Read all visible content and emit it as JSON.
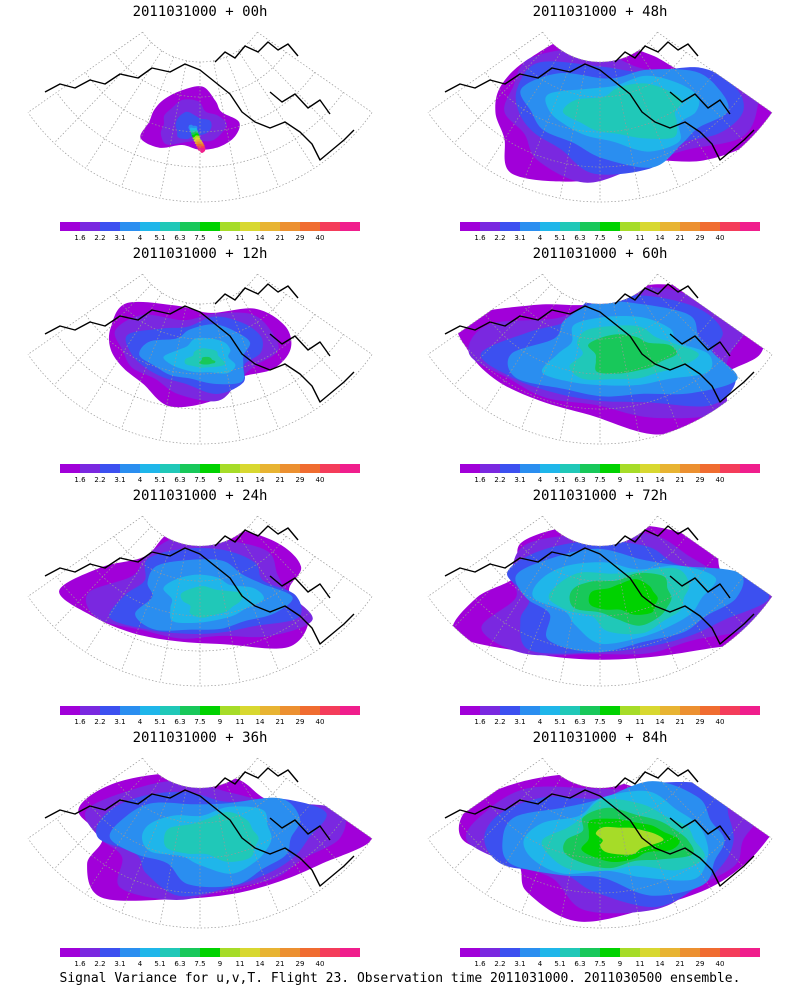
{
  "chart_data": {
    "type": "heatmap",
    "caption": "Signal Variance for u,v,T. Flight 23. Observation time 2011031000. 2011030500 ensemble.",
    "colorbar": {
      "ticks": [
        "1.6",
        "2.2",
        "3.1",
        "4",
        "5.1",
        "6.3",
        "7.5",
        "9",
        "11",
        "14",
        "21",
        "29",
        "40"
      ],
      "colors": [
        "#a100d9",
        "#7a28e0",
        "#3c50f0",
        "#2a8ef0",
        "#1fb6ea",
        "#20c8b8",
        "#18c85a",
        "#00d200",
        "#a6dc28",
        "#d8d830",
        "#e8b432",
        "#ec9030",
        "#f06c30",
        "#f43c5a",
        "#f01e8c"
      ]
    },
    "panels": [
      {
        "title": "2011031000 + 00h",
        "max_level": 14
      },
      {
        "title": "2011031000 + 48h",
        "max_level": 5
      },
      {
        "title": "2011031000 + 12h",
        "max_level": 6
      },
      {
        "title": "2011031000 + 60h",
        "max_level": 6
      },
      {
        "title": "2011031000 + 24h",
        "max_level": 5
      },
      {
        "title": "2011031000 + 72h",
        "max_level": 7
      },
      {
        "title": "2011031000 + 36h",
        "max_level": 5
      },
      {
        "title": "2011031000 + 84h",
        "max_level": 8
      }
    ]
  }
}
